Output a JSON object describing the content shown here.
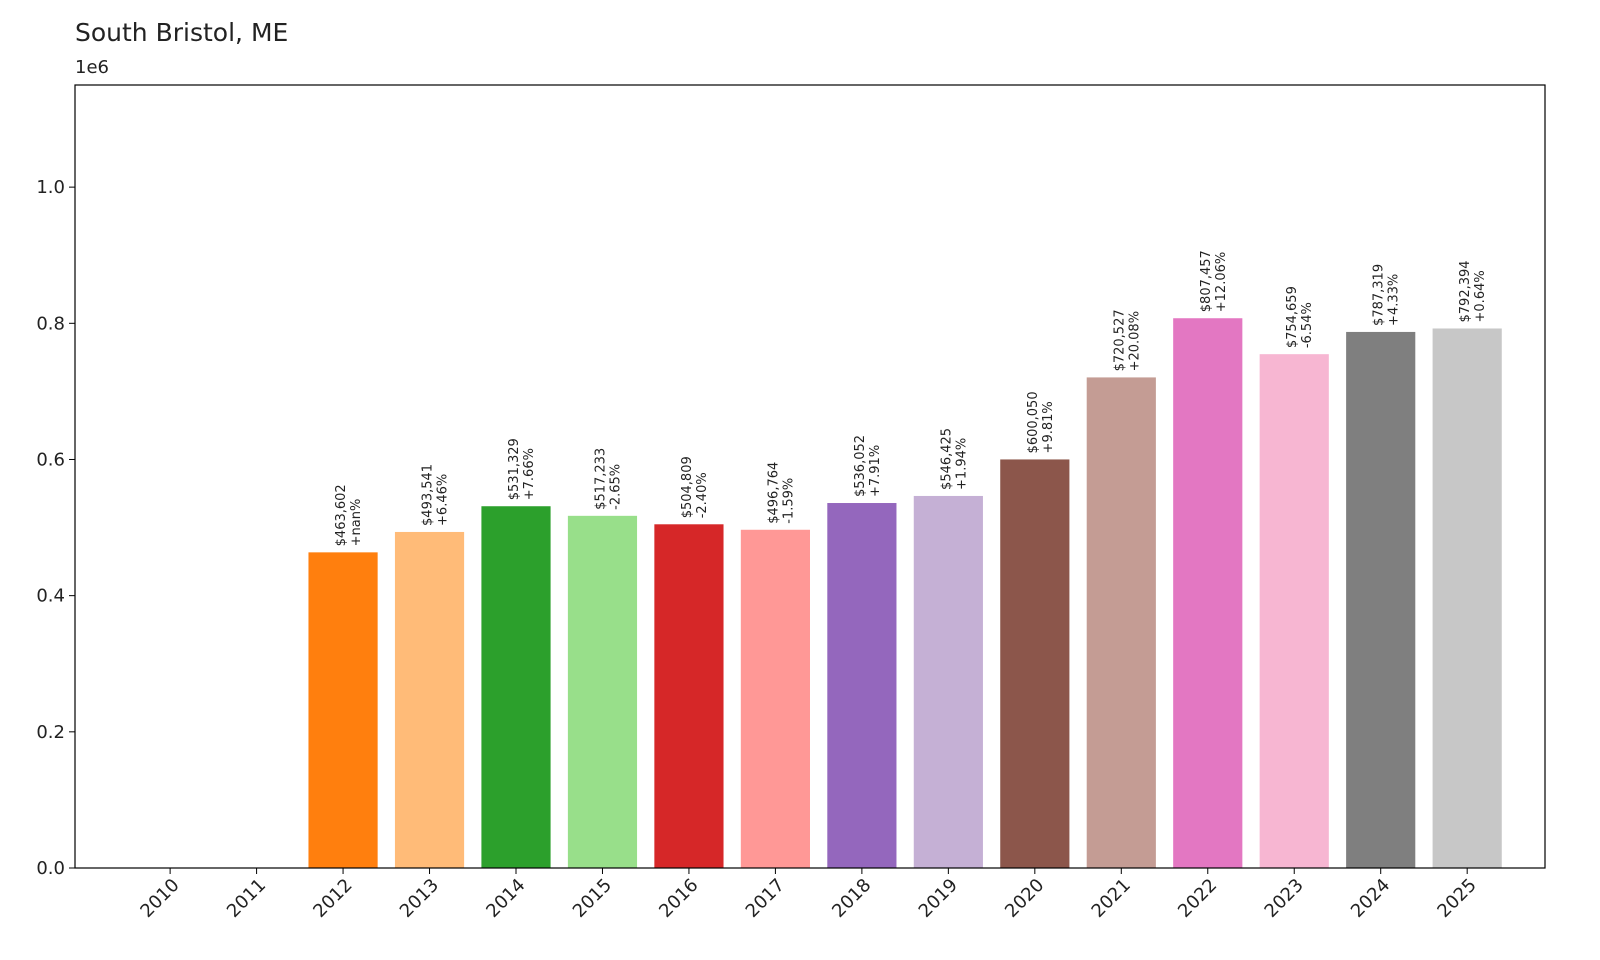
{
  "chart_data": {
    "type": "bar",
    "title": "South Bristol, ME",
    "offset_label": "1e6",
    "xlabel": "",
    "ylabel": "",
    "ylim": [
      0,
      1150000
    ],
    "yticks": [
      0,
      200000,
      400000,
      600000,
      800000,
      1000000
    ],
    "ytick_labels": [
      "0.0",
      "0.2",
      "0.4",
      "0.6",
      "0.8",
      "1.0"
    ],
    "grid": false,
    "categories": [
      "2010",
      "2011",
      "2012",
      "2013",
      "2014",
      "2015",
      "2016",
      "2017",
      "2018",
      "2019",
      "2020",
      "2021",
      "2022",
      "2023",
      "2024",
      "2025"
    ],
    "values": [
      0,
      0,
      463602,
      493541,
      531329,
      517233,
      504809,
      496764,
      536052,
      546425,
      600050,
      720527,
      807457,
      754659,
      787319,
      792394
    ],
    "value_labels": [
      "",
      "",
      "$463,602",
      "$493,541",
      "$531,329",
      "$517,233",
      "$504,809",
      "$496,764",
      "$536,052",
      "$546,425",
      "$600,050",
      "$720,527",
      "$807,457",
      "$754,659",
      "$787,319",
      "$792,394"
    ],
    "change_labels": [
      "",
      "",
      "+nan%",
      "+6.46%",
      "+7.66%",
      "-2.65%",
      "-2.40%",
      "-1.59%",
      "+7.91%",
      "+1.94%",
      "+9.81%",
      "+20.08%",
      "+12.06%",
      "-6.54%",
      "+4.33%",
      "+0.64%"
    ],
    "colors": [
      "#1f77b4",
      "#aec7e8",
      "#ff7f0e",
      "#ffbb78",
      "#2ca02c",
      "#98df8a",
      "#d62728",
      "#ff9896",
      "#9467bd",
      "#c5b0d5",
      "#8c564b",
      "#c49c94",
      "#e377c2",
      "#f7b6d2",
      "#7f7f7f",
      "#c7c7c7"
    ]
  }
}
